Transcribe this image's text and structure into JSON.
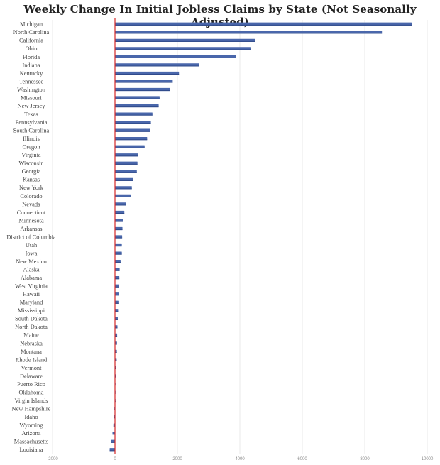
{
  "chart_data": {
    "type": "bar",
    "orientation": "horizontal",
    "title": "Weekly Change In Initial Jobless Claims by State (Not Seasonally Adjusted)",
    "xlabel": "",
    "ylabel": "",
    "xlim": [
      -2000,
      10000
    ],
    "x_ticks": [
      -2000,
      0,
      2000,
      4000,
      6000,
      8000,
      10000
    ],
    "x_tick_labels": [
      "-2000",
      "0",
      "2000",
      "4000",
      "6000",
      "8000",
      "10000"
    ],
    "grid": "vertical",
    "bar_color": "#4a67ab",
    "zero_line_color": "#d62828",
    "categories": [
      "Michigan",
      "North Carolina",
      "California",
      "Ohio",
      "Florida",
      "Indiana",
      "Kentucky",
      "Tennessee",
      "Washington",
      "Missouri",
      "New Jersey",
      "Texas",
      "Pennsylvania",
      "South Carolina",
      "Illinois",
      "Oregon",
      "Virginia",
      "Wisconsin",
      "Georgia",
      "Kansas",
      "New York",
      "Colorado",
      "Nevada",
      "Connecticut",
      "Minnesota",
      "Arkansas",
      "District of Columbia",
      "Utah",
      "Iowa",
      "New Mexico",
      "Alaska",
      "Alabama",
      "West Virginia",
      "Hawaii",
      "Maryland",
      "Mississippi",
      "South Dakota",
      "North Dakota",
      "Maine",
      "Nebraska",
      "Montana",
      "Rhode Island",
      "Vermont",
      "Delaware",
      "Puerto Rico",
      "Oklahoma",
      "Virgin Islands",
      "New Hampshire",
      "Idaho",
      "Wyoming",
      "Arizona",
      "Massachusetts",
      "Louisiana"
    ],
    "values": [
      9500,
      8550,
      4480,
      4340,
      3870,
      2700,
      2050,
      1850,
      1760,
      1430,
      1400,
      1200,
      1150,
      1130,
      1030,
      950,
      730,
      720,
      700,
      580,
      540,
      500,
      350,
      300,
      250,
      240,
      230,
      220,
      220,
      180,
      150,
      140,
      130,
      120,
      110,
      100,
      90,
      80,
      70,
      65,
      60,
      55,
      40,
      30,
      15,
      10,
      5,
      -20,
      -30,
      -50,
      -80,
      -120,
      -170
    ]
  }
}
